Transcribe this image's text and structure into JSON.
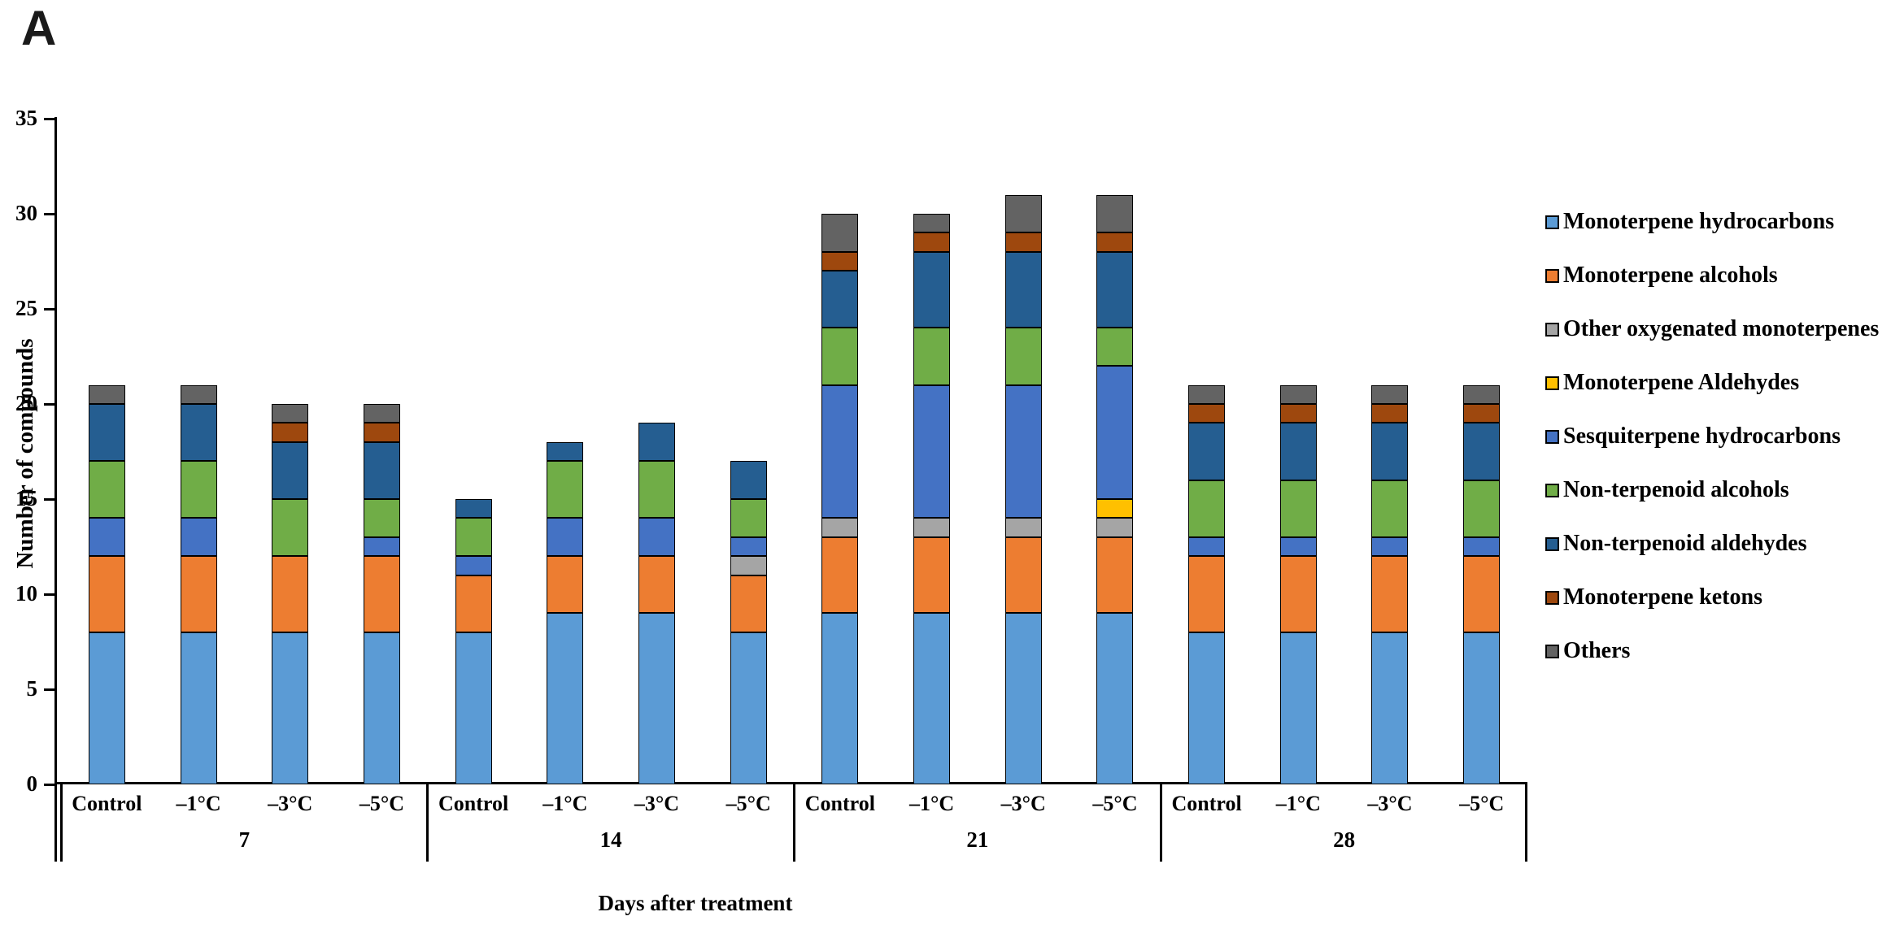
{
  "panel_label": "A",
  "chart_data": {
    "type": "bar",
    "stacked": true,
    "ylabel": "Number of compounds",
    "xlabel": "Days after treatment",
    "ylim": [
      0,
      35
    ],
    "yticks": [
      0,
      5,
      10,
      15,
      20,
      25,
      30,
      35
    ],
    "grid": false,
    "legend_position": "right",
    "groups": [
      {
        "label": "7",
        "categories": [
          "Control",
          "–1°C",
          "–3°C",
          "–5°C"
        ]
      },
      {
        "label": "14",
        "categories": [
          "Control",
          "–1°C",
          "–3°C",
          "–5°C"
        ]
      },
      {
        "label": "21",
        "categories": [
          "Control",
          "–1°C",
          "–3°C",
          "–5°C"
        ]
      },
      {
        "label": "28",
        "categories": [
          "Control",
          "–1°C",
          "–3°C",
          "–5°C"
        ]
      }
    ],
    "series": [
      {
        "name": "Monoterpene hydrocarbons",
        "color": "#5B9BD5",
        "values": [
          8,
          8,
          8,
          8,
          8,
          9,
          9,
          8,
          9,
          9,
          9,
          9,
          8,
          8,
          8,
          8
        ]
      },
      {
        "name": "Monoterpene alcohols",
        "color": "#ED7D31",
        "values": [
          4,
          4,
          4,
          4,
          3,
          3,
          3,
          3,
          4,
          4,
          4,
          4,
          4,
          4,
          4,
          4
        ]
      },
      {
        "name": "Other oxygenated monoterpenes",
        "color": "#A5A5A5",
        "values": [
          0,
          0,
          0,
          0,
          0,
          0,
          0,
          1,
          1,
          1,
          1,
          1,
          0,
          0,
          0,
          0
        ]
      },
      {
        "name": "Monoterpene Aldehydes",
        "color": "#FFC000",
        "values": [
          0,
          0,
          0,
          0,
          0,
          0,
          0,
          0,
          0,
          0,
          0,
          1,
          0,
          0,
          0,
          0
        ]
      },
      {
        "name": "Sesquiterpene hydrocarbons",
        "color": "#4472C4",
        "values": [
          2,
          2,
          0,
          1,
          1,
          2,
          2,
          1,
          7,
          7,
          7,
          7,
          1,
          1,
          1,
          1
        ]
      },
      {
        "name": "Non-terpenoid alcohols",
        "color": "#70AD47",
        "values": [
          3,
          3,
          3,
          2,
          2,
          3,
          3,
          2,
          3,
          3,
          3,
          2,
          3,
          3,
          3,
          3
        ]
      },
      {
        "name": "Non-terpenoid aldehydes",
        "color": "#255E91",
        "values": [
          3,
          3,
          3,
          3,
          1,
          1,
          2,
          2,
          3,
          4,
          4,
          4,
          3,
          3,
          3,
          3
        ]
      },
      {
        "name": "Monoterpene ketons",
        "color": "#9E480E",
        "values": [
          0,
          0,
          1,
          1,
          0,
          0,
          0,
          0,
          1,
          1,
          1,
          1,
          1,
          1,
          1,
          1
        ]
      },
      {
        "name": "Others",
        "color": "#636363",
        "values": [
          1,
          1,
          1,
          1,
          0,
          0,
          0,
          0,
          2,
          1,
          2,
          2,
          1,
          1,
          1,
          1
        ]
      }
    ]
  }
}
